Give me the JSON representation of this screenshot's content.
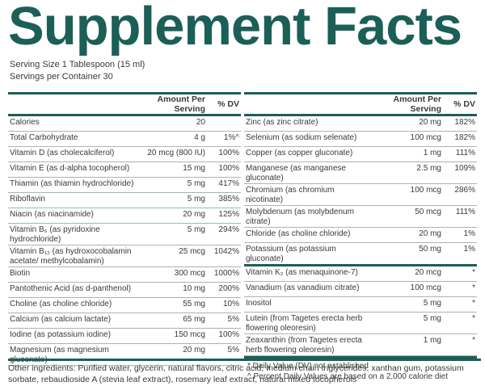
{
  "header": {
    "title": "Supplement Facts",
    "serving_size": "Serving Size 1 Tablespoon (15 ml)",
    "servings_per_container": "Servings per Container 30"
  },
  "left_table": {
    "columns": [
      "Amount Per Serving",
      "% DV"
    ],
    "rows": [
      [
        "Calories",
        "20"
      ],
      [
        "Total Carbohydrate",
        "4 g",
        "1%^"
      ],
      [
        "Vitamin D (as cholecalciferol)",
        "20 mcg (800 IU)",
        "100%"
      ],
      [
        "Vitamin E (as d-alpha tocopherol)",
        "15 mg",
        "100%"
      ],
      [
        "Thiamin (as thiamin hydrochloride)",
        "5 mg",
        "417%"
      ],
      [
        "Riboflavin",
        "5 mg",
        "385%"
      ],
      [
        "Niacin (as niacinamide)",
        "20 mg",
        "125%"
      ],
      [
        "Vitamin B₆ (as pyridoxine hydrochloride)",
        "5 mg",
        "294%"
      ],
      [
        "Vitamin B₁₂ (as hydroxocobalamin acetate/ methylcobalamin)",
        "25 mcg",
        "1042%"
      ],
      [
        "Biotin",
        "300 mcg",
        "1000%"
      ],
      [
        "Pantothenic Acid (as d-panthenol)",
        "10 mg",
        "200%"
      ],
      [
        "Choline (as choline chloride)",
        "55 mg",
        "10%"
      ],
      [
        "Calcium (as calcium lactate)",
        "65 mg",
        "5%"
      ],
      [
        "Iodine (as potassium iodine)",
        "150 mcg",
        "100%"
      ],
      [
        "Magnesium (as magnesium gluconate)",
        "20 mg",
        "5%"
      ]
    ]
  },
  "right_table": {
    "columns": [
      "Amount Per Serving",
      "% DV"
    ],
    "rows": [
      [
        "Zinc (as zinc citrate)",
        "20 mg",
        "182%"
      ],
      [
        "Selenium (as sodium selenate)",
        "100 mcg",
        "182%"
      ],
      [
        "Copper (as copper gluconate)",
        "1 mg",
        "111%"
      ],
      [
        "Manganese (as manganese gluconate)",
        "2.5 mg",
        "109%"
      ],
      [
        "Chromium (as chromium nicotinate)",
        "100 mcg",
        "286%"
      ],
      [
        "Molybdenum (as molybdenum citrate)",
        "50 mcg",
        "111%"
      ],
      [
        "Chloride (as choline chloride)",
        "20 mg",
        "1%"
      ],
      [
        "Potassium (as potassium gluconate)",
        "50 mg",
        "1%"
      ]
    ],
    "rows_2": [
      [
        "Vitamin K₂ (as menaquinone-7)",
        "20 mcg",
        "*"
      ],
      [
        "Vanadium (as vanadium citrate)",
        "100 mcg",
        "*"
      ],
      [
        "Inositol",
        "5 mg",
        "*"
      ],
      [
        "Lutein (from Tagetes erecta herb flowering oleoresin)",
        "5 mg",
        "*"
      ],
      [
        "Zeaxanthin (from Tagetes erecta herb flowering oleoresin)",
        "1 mg",
        "*"
      ]
    ]
  },
  "footnotes": [
    "* Daily Value (DV) not established",
    "^ Percent Daily Values are based on a 2,000 calorie diet"
  ],
  "other_ingredients": "Other ingredients: Purified water, glycerin, natural flavors, citric acid, medium chain triglycerides, xanthan gum, potassium sorbate, rebaudioside A (stevia leaf extract), rosemary leaf extract, natural mixed tocopherols"
}
